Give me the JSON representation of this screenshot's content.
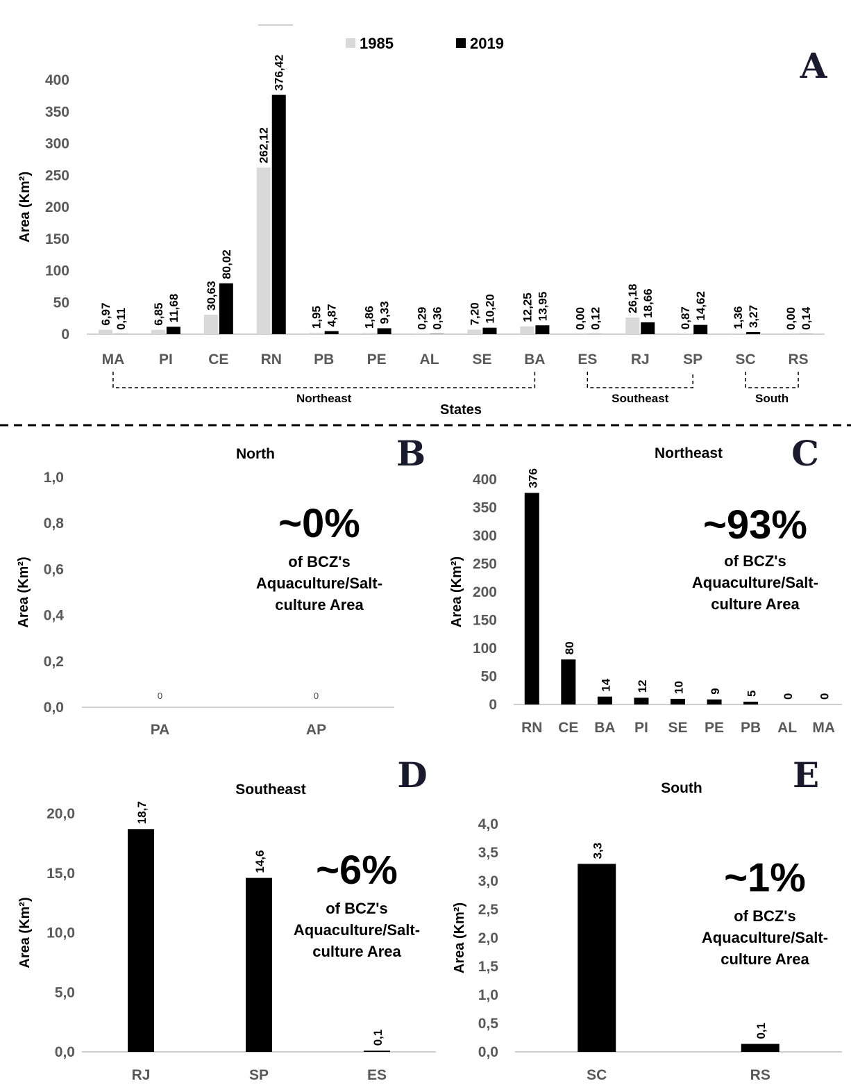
{
  "chart_data": [
    {
      "id": "A",
      "type": "bar",
      "panel_letter": "A",
      "title": "",
      "xlabel": "States",
      "ylabel": "Area (Km²)",
      "ylim": [
        0,
        400
      ],
      "yticks": [
        "0",
        "50",
        "100",
        "150",
        "200",
        "250",
        "300",
        "350",
        "400"
      ],
      "categories": [
        "MA",
        "PI",
        "CE",
        "RN",
        "PB",
        "PE",
        "AL",
        "SE",
        "BA",
        "ES",
        "RJ",
        "SP",
        "SC",
        "RS"
      ],
      "series": [
        {
          "name": "1985",
          "color": "#d9d9d9",
          "values": [
            6.97,
            6.85,
            30.63,
            262.12,
            1.95,
            1.86,
            0.29,
            7.2,
            12.25,
            0.0,
            26.18,
            0.87,
            1.36,
            0.0
          ],
          "labels": [
            "6,97",
            "6,85",
            "30,63",
            "262,12",
            "1,95",
            "1,86",
            "0,29",
            "7,20",
            "12,25",
            "0,00",
            "26,18",
            "0,87",
            "1,36",
            "0,00"
          ]
        },
        {
          "name": "2019",
          "color": "#000000",
          "values": [
            0.11,
            11.68,
            80.02,
            376.42,
            4.87,
            9.33,
            0.36,
            10.2,
            13.95,
            0.12,
            18.66,
            14.62,
            3.27,
            0.14
          ],
          "labels": [
            "0,11",
            "11,68",
            "80,02",
            "376,42",
            "4,87",
            "9,33",
            "0,36",
            "10,20",
            "13,95",
            "0,12",
            "18,66",
            "14,62",
            "3,27",
            "0,14"
          ]
        }
      ],
      "regions": [
        {
          "name": "Northeast",
          "from": "MA",
          "to": "BA"
        },
        {
          "name": "Southeast",
          "from": "ES",
          "to": "SP"
        },
        {
          "name": "South",
          "from": "SC",
          "to": "RS"
        }
      ]
    },
    {
      "id": "B",
      "type": "bar",
      "panel_letter": "B",
      "title": "North",
      "ylabel": "Area (Km²)",
      "ylim": [
        0,
        1.0
      ],
      "yticks": [
        "0,0",
        "0,2",
        "0,4",
        "0,6",
        "0,8",
        "1,0"
      ],
      "categories": [
        "PA",
        "AP"
      ],
      "values": [
        0,
        0
      ],
      "labels": [
        "0",
        "0"
      ],
      "share": "~0%",
      "share_note": [
        "of BCZ's",
        "Aquaculture/Salt-",
        "culture Area"
      ]
    },
    {
      "id": "C",
      "type": "bar",
      "panel_letter": "C",
      "title": "Northeast",
      "ylabel": "Area (Km²)",
      "ylim": [
        0,
        400
      ],
      "yticks": [
        "0",
        "50",
        "100",
        "150",
        "200",
        "250",
        "300",
        "350",
        "400"
      ],
      "categories": [
        "RN",
        "CE",
        "BA",
        "PI",
        "SE",
        "PE",
        "PB",
        "AL",
        "MA"
      ],
      "values": [
        376,
        80,
        14,
        12,
        10,
        9,
        5,
        0,
        0
      ],
      "labels": [
        "376",
        "80",
        "14",
        "12",
        "10",
        "9",
        "5",
        "0",
        "0"
      ],
      "share": "~93%",
      "share_note": [
        "of BCZ's",
        "Aquaculture/Salt-",
        "culture Area"
      ]
    },
    {
      "id": "D",
      "type": "bar",
      "panel_letter": "D",
      "title": "Southeast",
      "ylabel": "Area (Km²)",
      "ylim": [
        0,
        20
      ],
      "yticks": [
        "0,0",
        "5,0",
        "10,0",
        "15,0",
        "20,0"
      ],
      "categories": [
        "RJ",
        "SP",
        "ES"
      ],
      "values": [
        18.7,
        14.6,
        0.1
      ],
      "labels": [
        "18,7",
        "14,6",
        "0,1"
      ],
      "share": "~6%",
      "share_note": [
        "of BCZ's",
        "Aquaculture/Salt-",
        "culture Area"
      ]
    },
    {
      "id": "E",
      "type": "bar",
      "panel_letter": "E",
      "title": "South",
      "ylabel": "Area (Km²)",
      "ylim": [
        0,
        4.0
      ],
      "yticks": [
        "0,0",
        "0,5",
        "1,0",
        "1,5",
        "2,0",
        "2,5",
        "3,0",
        "3,5",
        "4,0"
      ],
      "categories": [
        "SC",
        "RS"
      ],
      "values": [
        3.3,
        0.14
      ],
      "labels": [
        "3,3",
        "0,1"
      ],
      "share": "~1%",
      "share_note": [
        "of BCZ's",
        "Aquaculture/Salt-",
        "culture Area"
      ]
    }
  ]
}
